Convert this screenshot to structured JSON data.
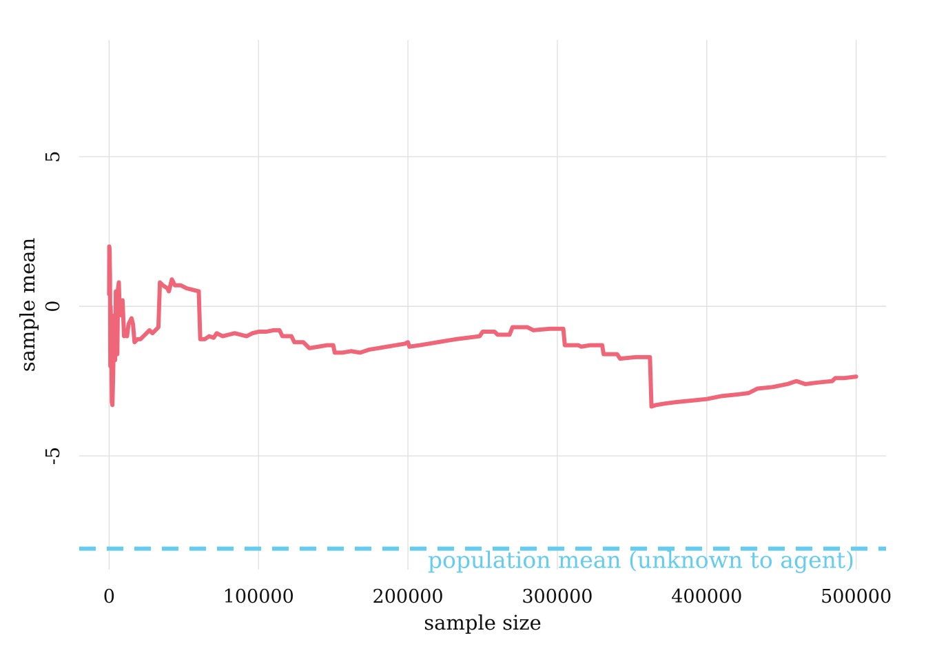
{
  "chart_data": {
    "type": "line",
    "title": "",
    "xlabel": "sample size",
    "ylabel": "sample mean",
    "xlim": [
      -20000,
      520000
    ],
    "ylim": [
      -8.8,
      8.9
    ],
    "x_ticks": [
      0,
      100000,
      200000,
      300000,
      400000,
      500000
    ],
    "x_tick_labels": [
      "0",
      "100000",
      "200000",
      "300000",
      "400000",
      "500000"
    ],
    "y_ticks": [
      -5,
      0,
      5
    ],
    "y_tick_labels": [
      "-5",
      "0",
      "5"
    ],
    "grid": true,
    "legend": "none",
    "series": [
      {
        "color": "#ee6677",
        "points": [
          [
            0,
            0.4
          ],
          [
            100,
            2.0
          ],
          [
            300,
            1.9
          ],
          [
            600,
            1.0
          ],
          [
            800,
            -2.0
          ],
          [
            1000,
            0.0
          ],
          [
            1500,
            -1.0
          ],
          [
            1800,
            -3.2
          ],
          [
            2200,
            -3.3
          ],
          [
            2600,
            -2.5
          ],
          [
            3000,
            -1.5
          ],
          [
            3500,
            -0.3
          ],
          [
            4000,
            -1.8
          ],
          [
            4500,
            0.5
          ],
          [
            5000,
            -0.5
          ],
          [
            5500,
            -1.6
          ],
          [
            6000,
            0.6
          ],
          [
            6500,
            0.8
          ],
          [
            7000,
            0.0
          ],
          [
            8000,
            -0.3
          ],
          [
            9000,
            0.2
          ],
          [
            10000,
            -1.0
          ],
          [
            11000,
            -0.8
          ],
          [
            12000,
            -1.0
          ],
          [
            13000,
            -0.6
          ],
          [
            14000,
            -0.5
          ],
          [
            15000,
            -0.4
          ],
          [
            16000,
            -0.6
          ],
          [
            17000,
            -1.2
          ],
          [
            19000,
            -1.1
          ],
          [
            21000,
            -1.1
          ],
          [
            23000,
            -1.0
          ],
          [
            25000,
            -0.9
          ],
          [
            27000,
            -0.8
          ],
          [
            29000,
            -0.9
          ],
          [
            31000,
            -0.8
          ],
          [
            33000,
            -0.7
          ],
          [
            34000,
            0.8
          ],
          [
            36000,
            0.7
          ],
          [
            39000,
            0.6
          ],
          [
            40000,
            0.5
          ],
          [
            42000,
            0.9
          ],
          [
            44000,
            0.7
          ],
          [
            48000,
            0.7
          ],
          [
            52000,
            0.6
          ],
          [
            56000,
            0.55
          ],
          [
            60000,
            0.5
          ],
          [
            61000,
            -1.1
          ],
          [
            64000,
            -1.1
          ],
          [
            67000,
            -1.0
          ],
          [
            70000,
            -1.05
          ],
          [
            72000,
            -0.9
          ],
          [
            76000,
            -1.0
          ],
          [
            80000,
            -0.95
          ],
          [
            84000,
            -0.9
          ],
          [
            88000,
            -0.95
          ],
          [
            92000,
            -1.0
          ],
          [
            96000,
            -0.9
          ],
          [
            100000,
            -0.85
          ],
          [
            105000,
            -0.85
          ],
          [
            110000,
            -0.8
          ],
          [
            114000,
            -0.8
          ],
          [
            116000,
            -1.0
          ],
          [
            122000,
            -1.0
          ],
          [
            124000,
            -1.2
          ],
          [
            130000,
            -1.2
          ],
          [
            134000,
            -1.4
          ],
          [
            140000,
            -1.35
          ],
          [
            146000,
            -1.3
          ],
          [
            150000,
            -1.3
          ],
          [
            151000,
            -1.55
          ],
          [
            156000,
            -1.55
          ],
          [
            162000,
            -1.5
          ],
          [
            168000,
            -1.55
          ],
          [
            174000,
            -1.45
          ],
          [
            180000,
            -1.4
          ],
          [
            186000,
            -1.35
          ],
          [
            192000,
            -1.3
          ],
          [
            198000,
            -1.25
          ],
          [
            200000,
            -1.2
          ],
          [
            201000,
            -1.35
          ],
          [
            208000,
            -1.3
          ],
          [
            214000,
            -1.25
          ],
          [
            220000,
            -1.2
          ],
          [
            226000,
            -1.15
          ],
          [
            232000,
            -1.1
          ],
          [
            240000,
            -1.05
          ],
          [
            248000,
            -1.0
          ],
          [
            250000,
            -0.85
          ],
          [
            258000,
            -0.85
          ],
          [
            260000,
            -0.95
          ],
          [
            268000,
            -0.95
          ],
          [
            270000,
            -0.7
          ],
          [
            280000,
            -0.7
          ],
          [
            284000,
            -0.8
          ],
          [
            295000,
            -0.75
          ],
          [
            304000,
            -0.75
          ],
          [
            305000,
            -1.3
          ],
          [
            314000,
            -1.3
          ],
          [
            316000,
            -1.35
          ],
          [
            322000,
            -1.3
          ],
          [
            330000,
            -1.3
          ],
          [
            331000,
            -1.6
          ],
          [
            340000,
            -1.6
          ],
          [
            342000,
            -1.75
          ],
          [
            352000,
            -1.7
          ],
          [
            362000,
            -1.7
          ],
          [
            363000,
            -3.35
          ],
          [
            366000,
            -3.3
          ],
          [
            372000,
            -3.25
          ],
          [
            380000,
            -3.2
          ],
          [
            390000,
            -3.15
          ],
          [
            400000,
            -3.1
          ],
          [
            410000,
            -3.0
          ],
          [
            420000,
            -2.95
          ],
          [
            428000,
            -2.9
          ],
          [
            434000,
            -2.75
          ],
          [
            444000,
            -2.7
          ],
          [
            454000,
            -2.6
          ],
          [
            460000,
            -2.5
          ],
          [
            466000,
            -2.6
          ],
          [
            474000,
            -2.55
          ],
          [
            484000,
            -2.5
          ],
          [
            486000,
            -2.4
          ],
          [
            492000,
            -2.4
          ],
          [
            500000,
            -2.35
          ]
        ]
      }
    ],
    "reference_line": {
      "y": -8.1,
      "label": "population mean (unknown to agent)",
      "color": "#66ccee",
      "style": "dashed"
    }
  }
}
